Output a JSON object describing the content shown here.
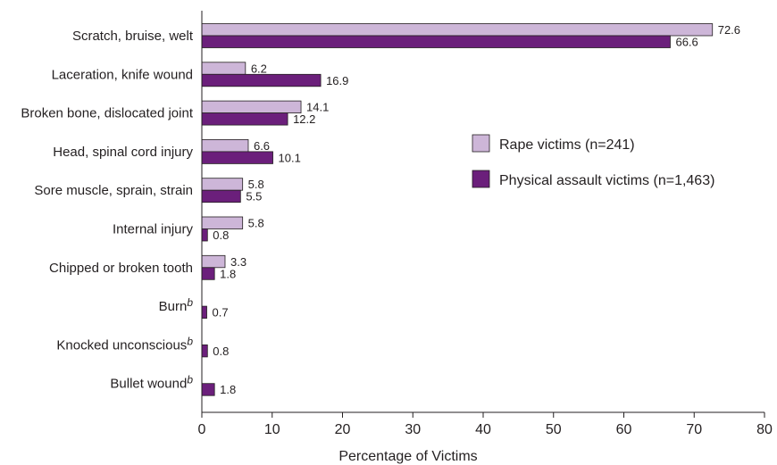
{
  "chart_data": {
    "type": "bar",
    "orientation": "horizontal",
    "categories": [
      {
        "label": "Scratch, bruise, welt",
        "sup": ""
      },
      {
        "label": "Laceration, knife wound",
        "sup": ""
      },
      {
        "label": "Broken bone, dislocated joint",
        "sup": ""
      },
      {
        "label": "Head, spinal cord injury",
        "sup": ""
      },
      {
        "label": "Sore muscle, sprain, strain",
        "sup": ""
      },
      {
        "label": "Internal injury",
        "sup": ""
      },
      {
        "label": "Chipped or broken tooth",
        "sup": ""
      },
      {
        "label": "Burn",
        "sup": "b"
      },
      {
        "label": "Knocked unconscious",
        "sup": "b"
      },
      {
        "label": "Bullet wound",
        "sup": "b"
      }
    ],
    "series": [
      {
        "name": "Rape victims (n=241)",
        "color": "#cdb6d8",
        "values": [
          72.6,
          6.2,
          14.1,
          6.6,
          5.8,
          5.8,
          3.3,
          null,
          null,
          null
        ],
        "labels": [
          "72.6",
          "6.2",
          "14.1",
          "6.6",
          "5.8",
          "5.8",
          "3.3",
          "",
          "",
          ""
        ]
      },
      {
        "name": "Physical assault victims (n=1,463)",
        "color": "#6b1f7b",
        "values": [
          66.6,
          16.9,
          12.2,
          10.1,
          5.5,
          0.8,
          1.8,
          0.7,
          0.8,
          1.8
        ],
        "labels": [
          "66.6",
          "16.9",
          "12.2",
          "10.1",
          "5.5",
          "0.8",
          "1.8",
          "0.7",
          "0.8",
          "1.8"
        ]
      }
    ],
    "xlabel": "Percentage of Victims",
    "xlim": [
      0,
      80
    ],
    "xticks": [
      "0",
      "10",
      "20",
      "30",
      "40",
      "50",
      "60",
      "70",
      "80"
    ],
    "grid": false,
    "legend_position": "right-middle"
  }
}
